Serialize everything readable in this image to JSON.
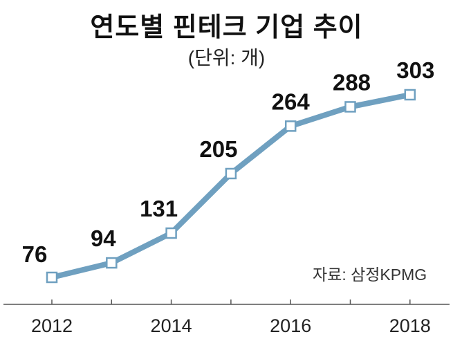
{
  "chart_data": {
    "type": "line",
    "title": "연도별 핀테크 기업 추이",
    "subtitle": "(단위: 개)",
    "source": "자료: 삼정KPMG",
    "x": [
      2012,
      2013,
      2014,
      2015,
      2016,
      2017,
      2018
    ],
    "x_tick_labels": [
      "2012",
      "2014",
      "2016",
      "2018"
    ],
    "values": [
      76,
      94,
      131,
      205,
      264,
      288,
      303
    ],
    "data_labels": [
      "76",
      "94",
      "131",
      "205",
      "264",
      "288",
      "303"
    ],
    "ylim": [
      60,
      320
    ],
    "grid": false,
    "colors": {
      "line": "#6fa0c0",
      "marker_fill": "#ffffff",
      "marker_stroke": "#6fa0c0",
      "axis": "#555555"
    }
  }
}
